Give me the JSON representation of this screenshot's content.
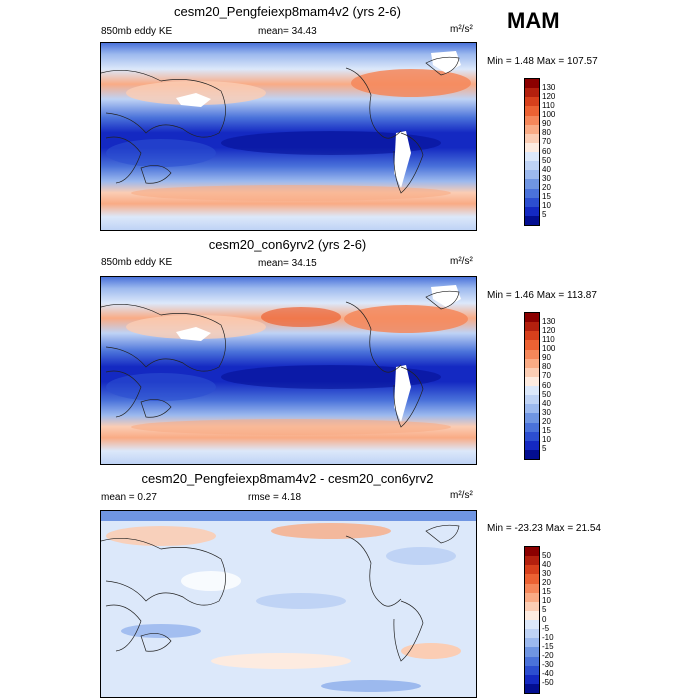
{
  "season": "MAM",
  "panels": [
    {
      "title": "cesm20_Pengfeiexp8mam4v2 (yrs 2-6)",
      "left_label": "850mb eddy KE",
      "center_label": "mean=  34.43",
      "units": "m²/s²",
      "minmax": "Min =   1.48 Max = 107.57",
      "kind": "full",
      "levels": [
        "130",
        "120",
        "110",
        "100",
        "90",
        "80",
        "70",
        "60",
        "50",
        "40",
        "30",
        "20",
        "15",
        "10",
        "5"
      ],
      "colors": [
        "#8b0000",
        "#b3200e",
        "#d7401c",
        "#ec6233",
        "#f5875a",
        "#f9ab85",
        "#fbcdb4",
        "#fdebe0",
        "#dce8fa",
        "#bfd3f5",
        "#9cb9ee",
        "#6f95e2",
        "#4a72da",
        "#2c4ed0",
        "#1429c2",
        "#030e91"
      ]
    },
    {
      "title": "cesm20_con6yrv2 (yrs 2-6)",
      "left_label": "850mb eddy KE",
      "center_label": "mean=  34.15",
      "units": "m²/s²",
      "minmax": "Min =   1.46 Max = 113.87",
      "kind": "full",
      "levels": [
        "130",
        "120",
        "110",
        "100",
        "90",
        "80",
        "70",
        "60",
        "50",
        "40",
        "30",
        "20",
        "15",
        "10",
        "5"
      ],
      "colors": [
        "#8b0000",
        "#b3200e",
        "#d7401c",
        "#ec6233",
        "#f5875a",
        "#f9ab85",
        "#fbcdb4",
        "#fdebe0",
        "#dce8fa",
        "#bfd3f5",
        "#9cb9ee",
        "#6f95e2",
        "#4a72da",
        "#2c4ed0",
        "#1429c2",
        "#030e91"
      ]
    },
    {
      "title": "cesm20_Pengfeiexp8mam4v2 - cesm20_con6yrv2",
      "left_label": "mean =   0.27",
      "center_label": "rmse =   4.18",
      "units": "m²/s²",
      "minmax": "Min = -23.23 Max =  21.54",
      "kind": "diff",
      "levels": [
        "50",
        "40",
        "30",
        "20",
        "15",
        "10",
        "5",
        "0",
        "-5",
        "-10",
        "-15",
        "-20",
        "-30",
        "-40",
        "-50"
      ],
      "colors": [
        "#8b0000",
        "#b3200e",
        "#d7401c",
        "#ec6233",
        "#f5875a",
        "#f9ab85",
        "#fbcdb4",
        "#fdebe0",
        "#dce8fa",
        "#bfd3f5",
        "#9cb9ee",
        "#6f95e2",
        "#4a72da",
        "#2c4ed0",
        "#1429c2",
        "#030e91"
      ]
    }
  ]
}
